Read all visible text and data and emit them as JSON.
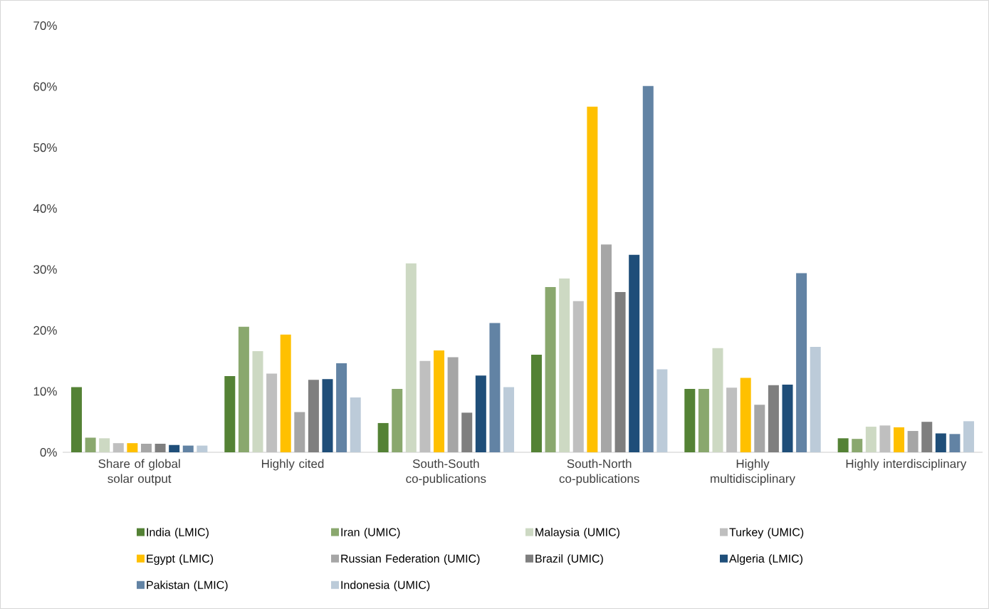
{
  "chart_data": {
    "type": "bar",
    "categories": [
      "Share of global solar output",
      "Highly cited",
      "South-South co-publications",
      "South-North co-publications",
      "Highly multidisciplinary",
      "Highly interdisciplinary"
    ],
    "series": [
      {
        "name": "India (LMIC)",
        "color": "#548235",
        "values": [
          10.7,
          12.5,
          4.8,
          16.0,
          10.4,
          2.3
        ]
      },
      {
        "name": "Iran (UMIC)",
        "color": "#8aa86e",
        "values": [
          2.4,
          20.6,
          10.4,
          27.1,
          10.4,
          2.2
        ]
      },
      {
        "name": "Malaysia (UMIC)",
        "color": "#cdd9c3",
        "values": [
          2.3,
          16.6,
          31.0,
          28.5,
          17.1,
          4.2
        ]
      },
      {
        "name": "Turkey (UMIC)",
        "color": "#bfbfbf",
        "values": [
          1.5,
          12.9,
          15.0,
          24.8,
          10.6,
          4.4
        ]
      },
      {
        "name": "Egypt (LMIC)",
        "color": "#ffc000",
        "values": [
          1.5,
          19.3,
          16.7,
          56.7,
          12.2,
          4.1
        ]
      },
      {
        "name": "Russian Federation (UMIC)",
        "color": "#a6a6a6",
        "values": [
          1.4,
          6.6,
          15.6,
          34.1,
          7.8,
          3.5
        ]
      },
      {
        "name": "Brazil (UMIC)",
        "color": "#7f7f7f",
        "values": [
          1.4,
          11.9,
          6.5,
          26.3,
          11.0,
          5.0
        ]
      },
      {
        "name": "Algeria (LMIC)",
        "color": "#1f4e79",
        "values": [
          1.2,
          12.0,
          12.6,
          32.4,
          11.1,
          3.1
        ]
      },
      {
        "name": "Pakistan (LMIC)",
        "color": "#6283a4",
        "values": [
          1.1,
          14.6,
          21.2,
          60.1,
          29.4,
          3.0
        ]
      },
      {
        "name": "Indonesia (UMIC)",
        "color": "#bccbd9",
        "values": [
          1.1,
          9.0,
          10.7,
          13.6,
          17.3,
          5.1
        ]
      }
    ],
    "ylim": [
      0,
      70
    ],
    "yticks": [
      {
        "value": 0,
        "label": "0%"
      },
      {
        "value": 10,
        "label": "10%"
      },
      {
        "value": 20,
        "label": "20%"
      },
      {
        "value": 30,
        "label": "30%"
      },
      {
        "value": 40,
        "label": "40%"
      },
      {
        "value": 50,
        "label": "50%"
      },
      {
        "value": 60,
        "label": "60%"
      },
      {
        "value": 70,
        "label": "70%"
      }
    ],
    "legend": "bottom"
  }
}
